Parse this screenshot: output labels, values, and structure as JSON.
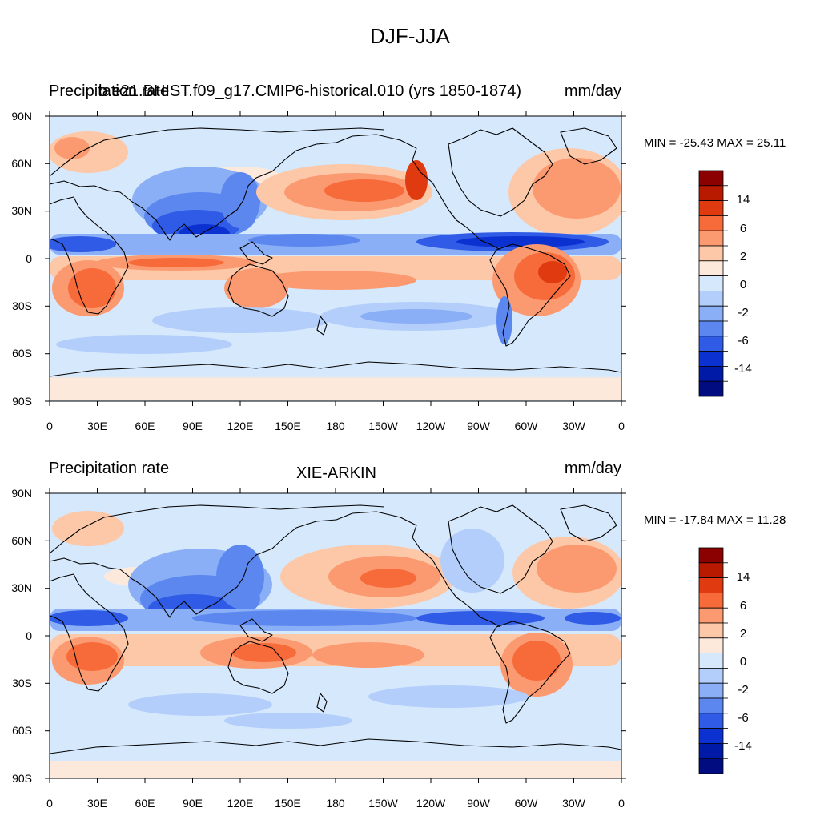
{
  "figure": {
    "title": "DJF-JJA"
  },
  "panels": [
    {
      "left_label": "Precipitation rate",
      "center_label": "b.e21.BHIST.f09_g17.CMIP6-historical.010 (yrs 1850-1874)",
      "right_label": "mm/day",
      "minmax": "MIN = -25.43 MAX =  25.11",
      "x_ticks": [
        "0",
        "30E",
        "60E",
        "90E",
        "120E",
        "150E",
        "180",
        "150W",
        "120W",
        "90W",
        "60W",
        "30W",
        "0"
      ],
      "y_ticks": [
        "90N",
        "60N",
        "30N",
        "0",
        "30S",
        "60S",
        "90S"
      ],
      "colorbar_labels": [
        "14",
        "6",
        "2",
        "0",
        "-2",
        "-6",
        "-14"
      ]
    },
    {
      "left_label": "Precipitation rate",
      "center_label": "XIE-ARKIN",
      "right_label": "mm/day",
      "minmax": "MIN = -17.84 MAX =  11.28",
      "x_ticks": [
        "0",
        "30E",
        "60E",
        "90E",
        "120E",
        "150E",
        "180",
        "150W",
        "120W",
        "90W",
        "60W",
        "30W",
        "0"
      ],
      "y_ticks": [
        "90N",
        "60N",
        "30N",
        "0",
        "30S",
        "60S",
        "90S"
      ],
      "colorbar_labels": [
        "14",
        "6",
        "2",
        "0",
        "-2",
        "-6",
        "-14"
      ]
    }
  ],
  "colorbar_colors": [
    "#8b0000",
    "#b81a00",
    "#e03a10",
    "#f76a3a",
    "#fb9a70",
    "#fdc8a8",
    "#fde8dc",
    "#d6e8fc",
    "#b3cefa",
    "#8aaff6",
    "#5b87ef",
    "#2f5be6",
    "#0b32d0",
    "#001aa8",
    "#000c80"
  ],
  "colors": {
    "ocean_background": "#d6e8fc",
    "coastline": "#000000"
  }
}
